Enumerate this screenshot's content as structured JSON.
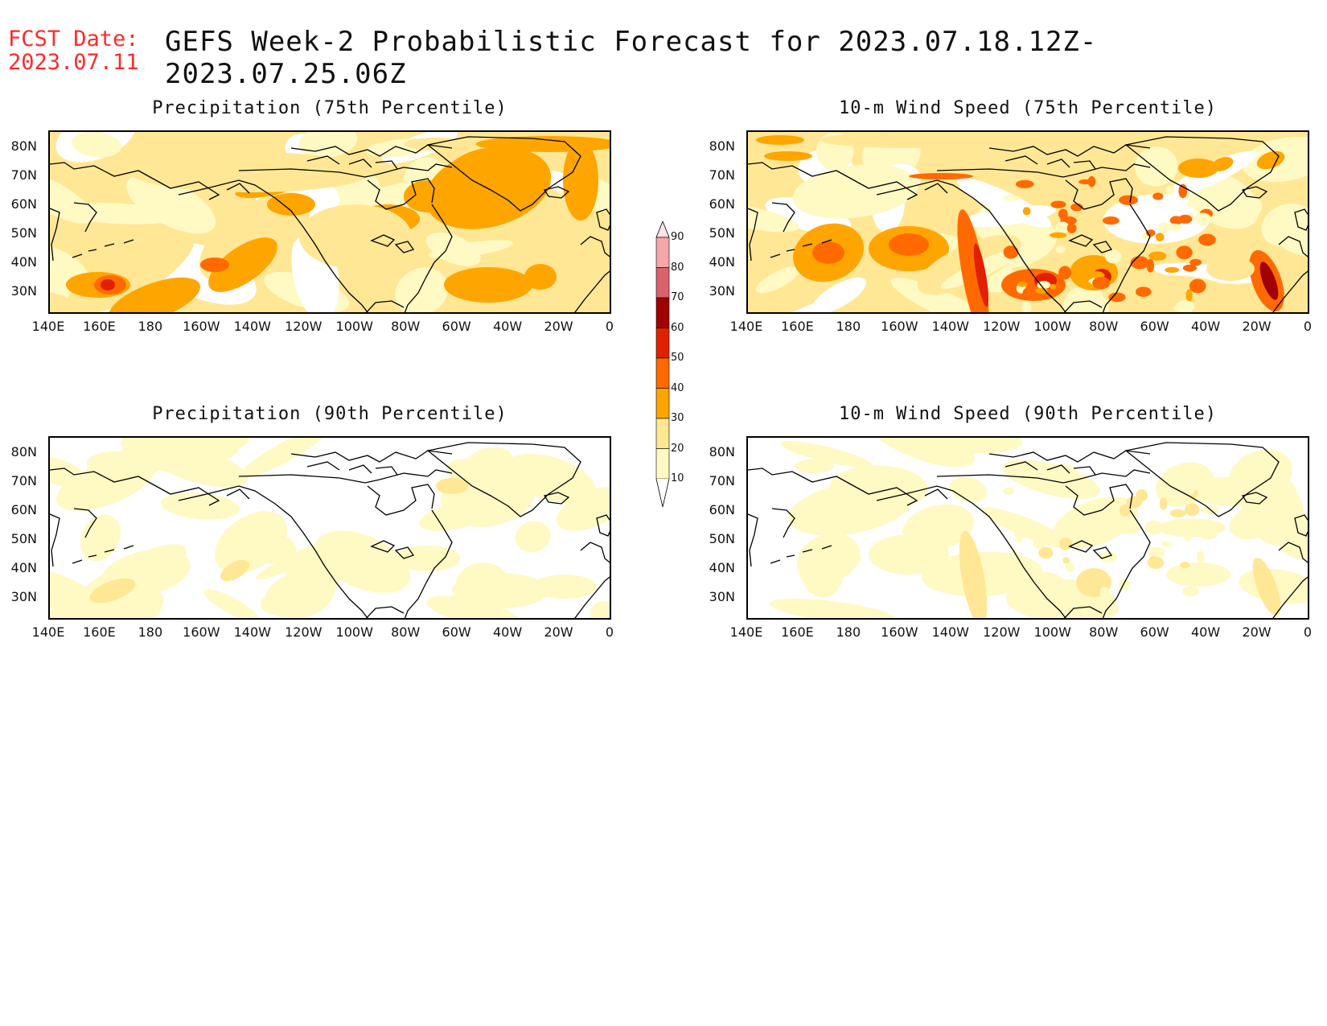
{
  "header": {
    "fcst_label": "FCST Date:",
    "fcst_date": "2023.07.11",
    "title": "GEFS Week-2 Probabilistic Forecast for 2023.07.18.12Z-2023.07.25.06Z"
  },
  "colors": {
    "fcst": "#ff2a2a",
    "levels": [
      "#fff9c4",
      "#ffe795",
      "#ffa500",
      "#ff6a00",
      "#e02000",
      "#a00000",
      "#d9636b",
      "#f4a6a9",
      "#fce4e4"
    ]
  },
  "map_axes": {
    "lon_labels": [
      "140E",
      "160E",
      "180",
      "160W",
      "140W",
      "120W",
      "100W",
      "80W",
      "60W",
      "40W",
      "20W",
      "0"
    ],
    "lat_labels": [
      "80N",
      "70N",
      "60N",
      "50N",
      "40N",
      "30N"
    ]
  },
  "panels": [
    {
      "title": "Precipitation (75th Percentile)",
      "variable": "precipitation",
      "percentile": "75th",
      "intensity": "high"
    },
    {
      "title": "10-m Wind Speed (75th Percentile)",
      "variable": "wind",
      "percentile": "75th",
      "intensity": "high"
    },
    {
      "title": "Precipitation (90th Percentile)",
      "variable": "precipitation",
      "percentile": "90th",
      "intensity": "low"
    },
    {
      "title": "10-m Wind Speed (90th Percentile)",
      "variable": "wind",
      "percentile": "90th",
      "intensity": "low"
    }
  ],
  "colorbar": {
    "labels": [
      "10",
      "20",
      "30",
      "40",
      "50",
      "60",
      "70",
      "80",
      "90"
    ],
    "units": "%"
  }
}
